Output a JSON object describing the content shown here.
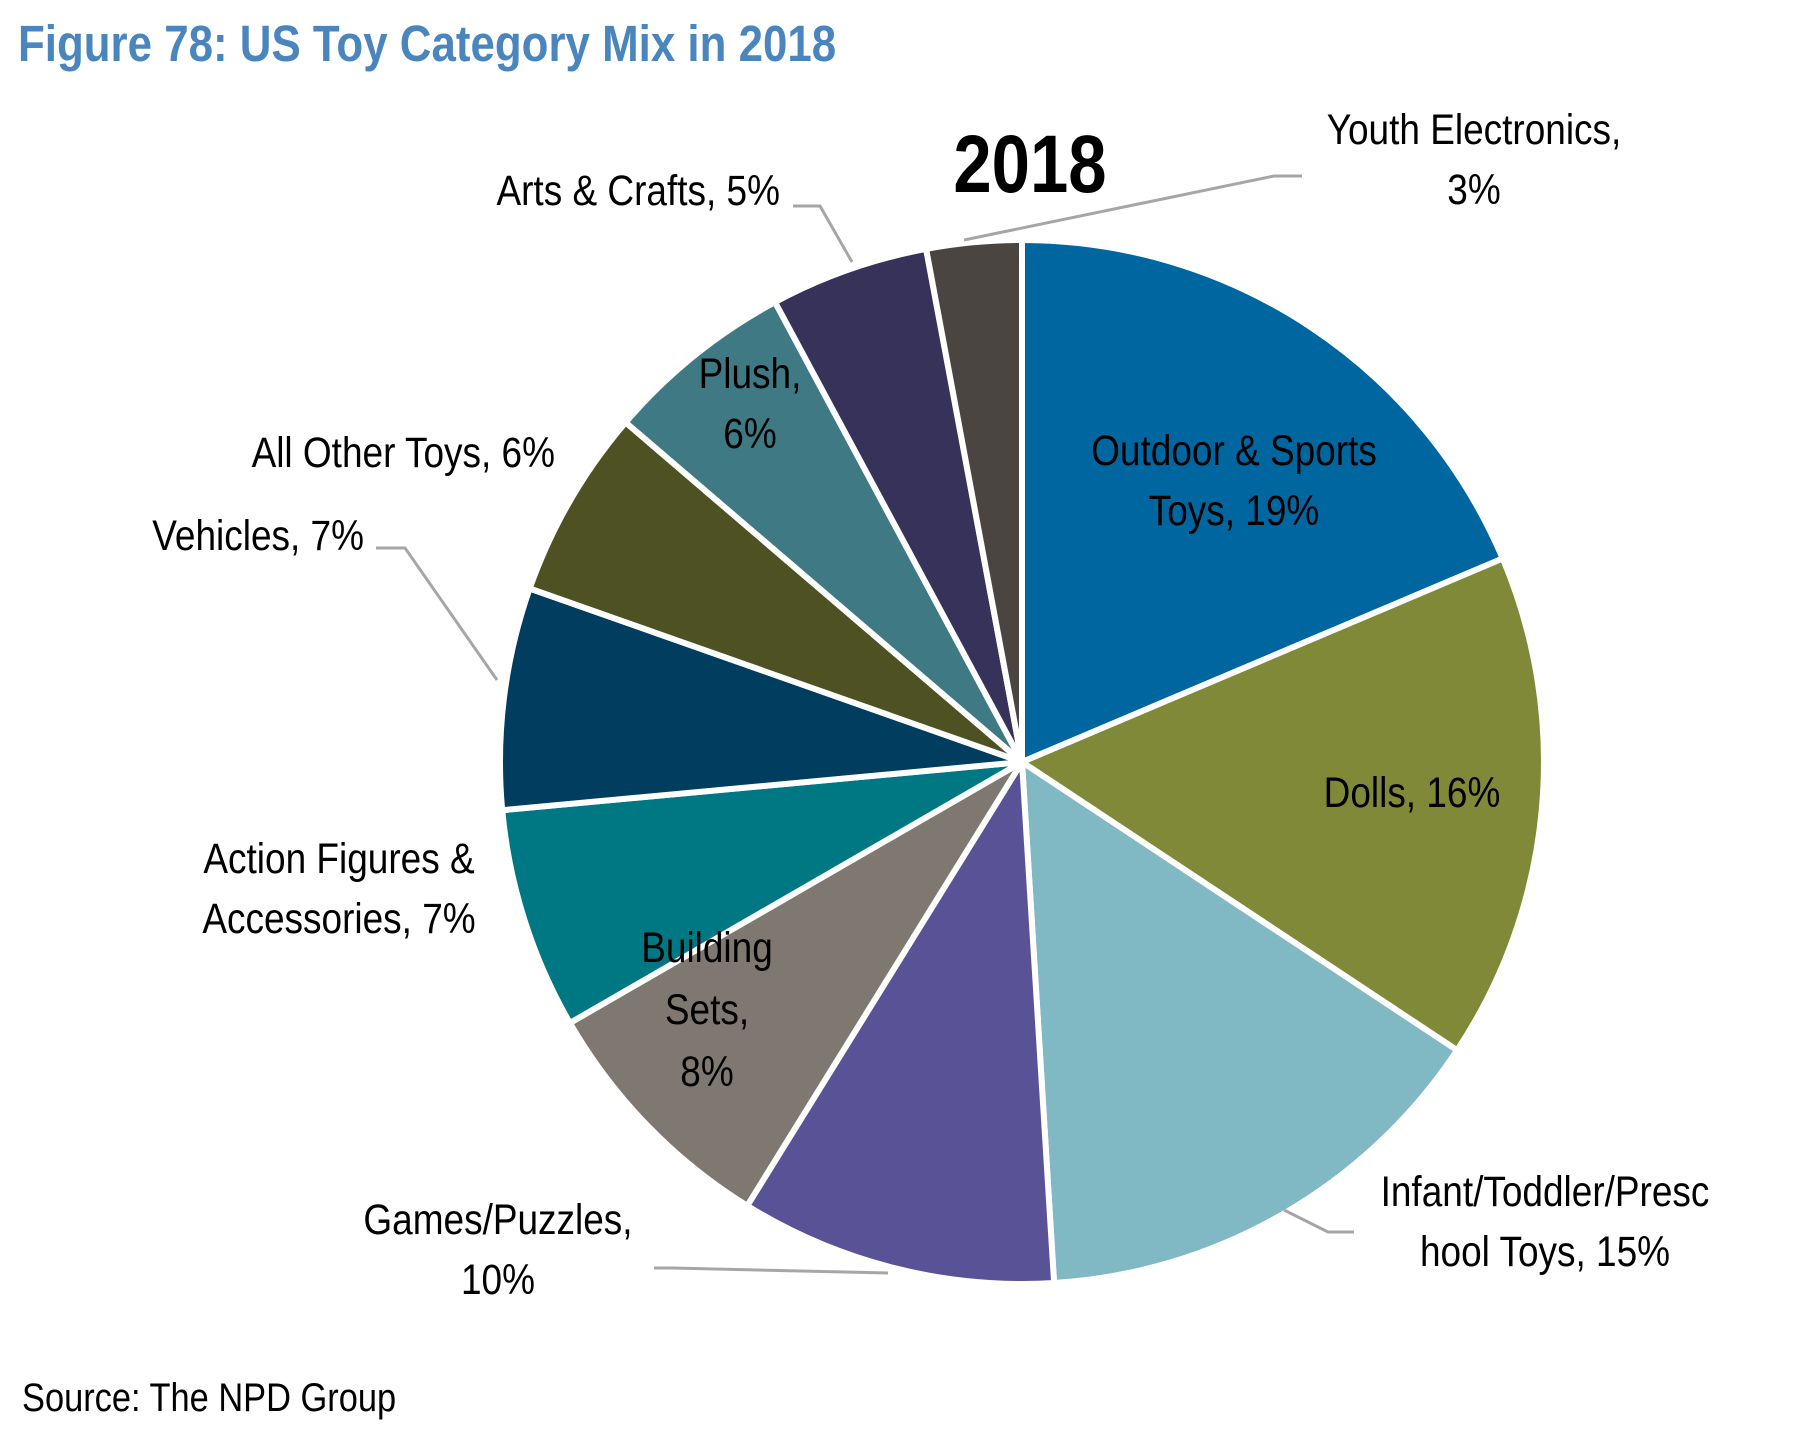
{
  "title": "Figure 78: US Toy Category Mix in 2018",
  "source": "Source: The NPD Group",
  "colors": {
    "title": "#4a86bd",
    "leader_line": "#a6a6a6",
    "slice_border": "#ffffff"
  },
  "chart_data": {
    "type": "pie",
    "title": "2018",
    "start": "12 o'clock, clockwise",
    "slices": [
      {
        "label": "Outdoor & Sports Toys",
        "value": 19,
        "color": "#0066a0",
        "label_lines": [
          "Outdoor & Sports",
          "Toys, 19%"
        ]
      },
      {
        "label": "Dolls",
        "value": 16,
        "color": "#808938",
        "label_lines": [
          "Dolls, 16%"
        ]
      },
      {
        "label": "Infant/Toddler/Preschool Toys",
        "value": 15,
        "color": "#80b8c4",
        "label_lines": [
          "Infant/Toddler/Presc",
          "hool Toys, 15%"
        ]
      },
      {
        "label": "Games/Puzzles",
        "value": 10,
        "color": "#5a5296",
        "label_lines": [
          "Games/Puzzles,",
          "10%"
        ]
      },
      {
        "label": "Building Sets",
        "value": 8,
        "color": "#7f7871",
        "label_lines": [
          "Building",
          "Sets,",
          "8%"
        ]
      },
      {
        "label": "Action Figures & Accessories",
        "value": 7,
        "color": "#007883",
        "label_lines": [
          "Action Figures &",
          "Accessories, 7%"
        ]
      },
      {
        "label": "Vehicles",
        "value": 7,
        "color": "#003d5f",
        "label_lines": [
          "Vehicles, 7%"
        ]
      },
      {
        "label": "All Other Toys",
        "value": 6,
        "color": "#4e5222",
        "label_lines": [
          "All Other Toys, 6%"
        ]
      },
      {
        "label": "Plush",
        "value": 6,
        "color": "#3f7a84",
        "label_lines": [
          "Plush,",
          "6%"
        ]
      },
      {
        "label": "Arts & Crafts",
        "value": 5,
        "color": "#37325a",
        "label_lines": [
          "Arts & Crafts, 5%"
        ]
      },
      {
        "label": "Youth Electronics",
        "value": 3,
        "color": "#4a4541",
        "label_lines": [
          "Youth Electronics,",
          "3%"
        ]
      }
    ]
  }
}
